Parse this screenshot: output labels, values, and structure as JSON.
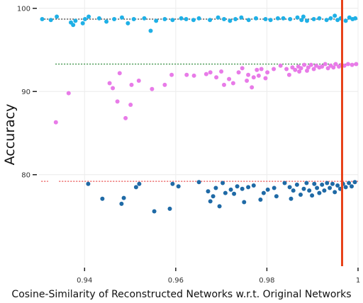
{
  "chart_data": {
    "type": "scatter",
    "title": "",
    "xlabel": "Cosine-Similarity of Reconstructed Networks w.r.t. Original Networks",
    "ylabel": "Accuracy",
    "xlim": [
      0.93,
      1.0
    ],
    "ylim": [
      69,
      101
    ],
    "x_ticks": [
      0.94,
      0.96,
      0.98,
      1.0
    ],
    "x_tick_labels": [
      "0.94",
      "0.96",
      "0.98",
      "1"
    ],
    "y_ticks": [
      80,
      90,
      100
    ],
    "y_tick_labels": [
      "80",
      "90",
      "100"
    ],
    "grid": true,
    "legend": "none",
    "vertical_line": {
      "x": 0.9965,
      "color": "#e8431a"
    },
    "reference_lines": [
      {
        "y": 98.7,
        "color": "#333333",
        "style": "dotted"
      },
      {
        "y": 93.3,
        "color": "#2e8b3a",
        "style": "dotted"
      },
      {
        "y": 79.2,
        "color": "#e84a4a",
        "style": "dotted"
      }
    ],
    "series": [
      {
        "color": "#1fb0e6",
        "points": [
          [
            0.9307,
            98.7
          ],
          [
            0.9326,
            98.6
          ],
          [
            0.9339,
            99.0
          ],
          [
            0.937,
            98.3
          ],
          [
            0.9375,
            98.0
          ],
          [
            0.938,
            98.5
          ],
          [
            0.9396,
            98.2
          ],
          [
            0.9401,
            98.7
          ],
          [
            0.9409,
            99.0
          ],
          [
            0.9432,
            98.8
          ],
          [
            0.9448,
            98.4
          ],
          [
            0.9465,
            98.7
          ],
          [
            0.9482,
            98.9
          ],
          [
            0.9495,
            98.2
          ],
          [
            0.9508,
            98.7
          ],
          [
            0.9531,
            98.8
          ],
          [
            0.9545,
            97.3
          ],
          [
            0.9557,
            98.5
          ],
          [
            0.9576,
            98.7
          ],
          [
            0.9593,
            98.6
          ],
          [
            0.9612,
            98.8
          ],
          [
            0.9623,
            98.7
          ],
          [
            0.9639,
            98.6
          ],
          [
            0.9651,
            98.8
          ],
          [
            0.9675,
            98.6
          ],
          [
            0.9693,
            98.9
          ],
          [
            0.9706,
            98.7
          ],
          [
            0.9719,
            98.5
          ],
          [
            0.9731,
            98.7
          ],
          [
            0.9744,
            98.9
          ],
          [
            0.976,
            98.6
          ],
          [
            0.9776,
            98.8
          ],
          [
            0.9797,
            98.7
          ],
          [
            0.9808,
            98.6
          ],
          [
            0.9824,
            98.8
          ],
          [
            0.9836,
            98.8
          ],
          [
            0.9851,
            98.7
          ],
          [
            0.9867,
            98.9
          ],
          [
            0.9876,
            98.6
          ],
          [
            0.988,
            99.0
          ],
          [
            0.9888,
            98.5
          ],
          [
            0.9903,
            98.7
          ],
          [
            0.9915,
            98.8
          ],
          [
            0.9931,
            98.6
          ],
          [
            0.994,
            98.8
          ],
          [
            0.9949,
            99.1
          ],
          [
            0.9955,
            98.6
          ],
          [
            0.9962,
            98.8
          ],
          [
            0.9973,
            98.5
          ],
          [
            0.9981,
            98.9
          ],
          [
            0.9988,
            98.7
          ],
          [
            0.9994,
            98.8
          ]
        ]
      },
      {
        "color": "#e87be8",
        "points": [
          [
            0.9337,
            86.3
          ],
          [
            0.9365,
            89.8
          ],
          [
            0.9455,
            91.0
          ],
          [
            0.9462,
            90.4
          ],
          [
            0.9472,
            88.8
          ],
          [
            0.9477,
            92.2
          ],
          [
            0.949,
            86.8
          ],
          [
            0.9501,
            88.4
          ],
          [
            0.9503,
            90.8
          ],
          [
            0.9519,
            91.3
          ],
          [
            0.9548,
            90.3
          ],
          [
            0.9576,
            90.8
          ],
          [
            0.9591,
            92.0
          ],
          [
            0.9624,
            92.0
          ],
          [
            0.964,
            91.9
          ],
          [
            0.9667,
            92.1
          ],
          [
            0.9676,
            92.3
          ],
          [
            0.9689,
            91.7
          ],
          [
            0.97,
            92.4
          ],
          [
            0.9706,
            90.8
          ],
          [
            0.9717,
            91.5
          ],
          [
            0.9726,
            91.0
          ],
          [
            0.9738,
            92.3
          ],
          [
            0.9746,
            92.8
          ],
          [
            0.9756,
            91.3
          ],
          [
            0.9759,
            92.0
          ],
          [
            0.9767,
            90.5
          ],
          [
            0.9771,
            91.7
          ],
          [
            0.9778,
            92.6
          ],
          [
            0.9782,
            91.9
          ],
          [
            0.9788,
            92.7
          ],
          [
            0.9797,
            91.6
          ],
          [
            0.9801,
            92.3
          ],
          [
            0.9815,
            92.7
          ],
          [
            0.983,
            93.1
          ],
          [
            0.9843,
            92.7
          ],
          [
            0.9849,
            92.0
          ],
          [
            0.9856,
            92.9
          ],
          [
            0.9862,
            92.6
          ],
          [
            0.9869,
            93.0
          ],
          [
            0.9871,
            92.4
          ],
          [
            0.9875,
            92.8
          ],
          [
            0.9882,
            93.2
          ],
          [
            0.9888,
            92.5
          ],
          [
            0.9891,
            92.9
          ],
          [
            0.9897,
            93.2
          ],
          [
            0.9903,
            92.7
          ],
          [
            0.9908,
            93.1
          ],
          [
            0.9915,
            92.9
          ],
          [
            0.9921,
            93.0
          ],
          [
            0.9928,
            93.3
          ],
          [
            0.9934,
            92.8
          ],
          [
            0.994,
            93.1
          ],
          [
            0.9946,
            92.9
          ],
          [
            0.9951,
            93.3
          ],
          [
            0.9958,
            93.0
          ],
          [
            0.9964,
            93.2
          ],
          [
            0.997,
            93.1
          ],
          [
            0.9978,
            93.3
          ],
          [
            0.9987,
            93.2
          ],
          [
            0.9996,
            93.3
          ]
        ]
      },
      {
        "color": "#1f6aa6",
        "points": [
          [
            0.9408,
            78.9
          ],
          [
            0.9439,
            77.1
          ],
          [
            0.9481,
            76.5
          ],
          [
            0.9486,
            77.2
          ],
          [
            0.9513,
            78.5
          ],
          [
            0.952,
            78.9
          ],
          [
            0.9553,
            75.6
          ],
          [
            0.9587,
            75.9
          ],
          [
            0.9593,
            78.9
          ],
          [
            0.9606,
            78.6
          ],
          [
            0.9651,
            79.1
          ],
          [
            0.9671,
            78.0
          ],
          [
            0.9676,
            76.8
          ],
          [
            0.9682,
            77.4
          ],
          [
            0.9688,
            78.4
          ],
          [
            0.9696,
            76.2
          ],
          [
            0.9703,
            79.0
          ],
          [
            0.9709,
            77.8
          ],
          [
            0.9721,
            78.2
          ],
          [
            0.9728,
            77.7
          ],
          [
            0.9735,
            78.6
          ],
          [
            0.9746,
            78.3
          ],
          [
            0.975,
            76.7
          ],
          [
            0.9759,
            78.5
          ],
          [
            0.9771,
            78.7
          ],
          [
            0.9786,
            77.0
          ],
          [
            0.9793,
            77.8
          ],
          [
            0.9802,
            78.2
          ],
          [
            0.9816,
            78.4
          ],
          [
            0.9821,
            77.4
          ],
          [
            0.9839,
            79.0
          ],
          [
            0.985,
            78.5
          ],
          [
            0.9853,
            77.1
          ],
          [
            0.9858,
            78.1
          ],
          [
            0.9866,
            78.8
          ],
          [
            0.9874,
            77.6
          ],
          [
            0.9881,
            78.3
          ],
          [
            0.9887,
            79.0
          ],
          [
            0.9893,
            78.1
          ],
          [
            0.9899,
            77.5
          ],
          [
            0.9904,
            78.9
          ],
          [
            0.991,
            78.4
          ],
          [
            0.9915,
            77.8
          ],
          [
            0.9921,
            78.8
          ],
          [
            0.9926,
            78.1
          ],
          [
            0.9932,
            79.0
          ],
          [
            0.9938,
            78.4
          ],
          [
            0.9944,
            78.9
          ],
          [
            0.9949,
            77.9
          ],
          [
            0.9955,
            78.7
          ],
          [
            0.9961,
            78.3
          ],
          [
            0.9967,
            78.9
          ],
          [
            0.9973,
            78.5
          ],
          [
            0.998,
            79.0
          ],
          [
            0.9986,
            78.6
          ],
          [
            0.9993,
            79.1
          ]
        ]
      }
    ]
  }
}
